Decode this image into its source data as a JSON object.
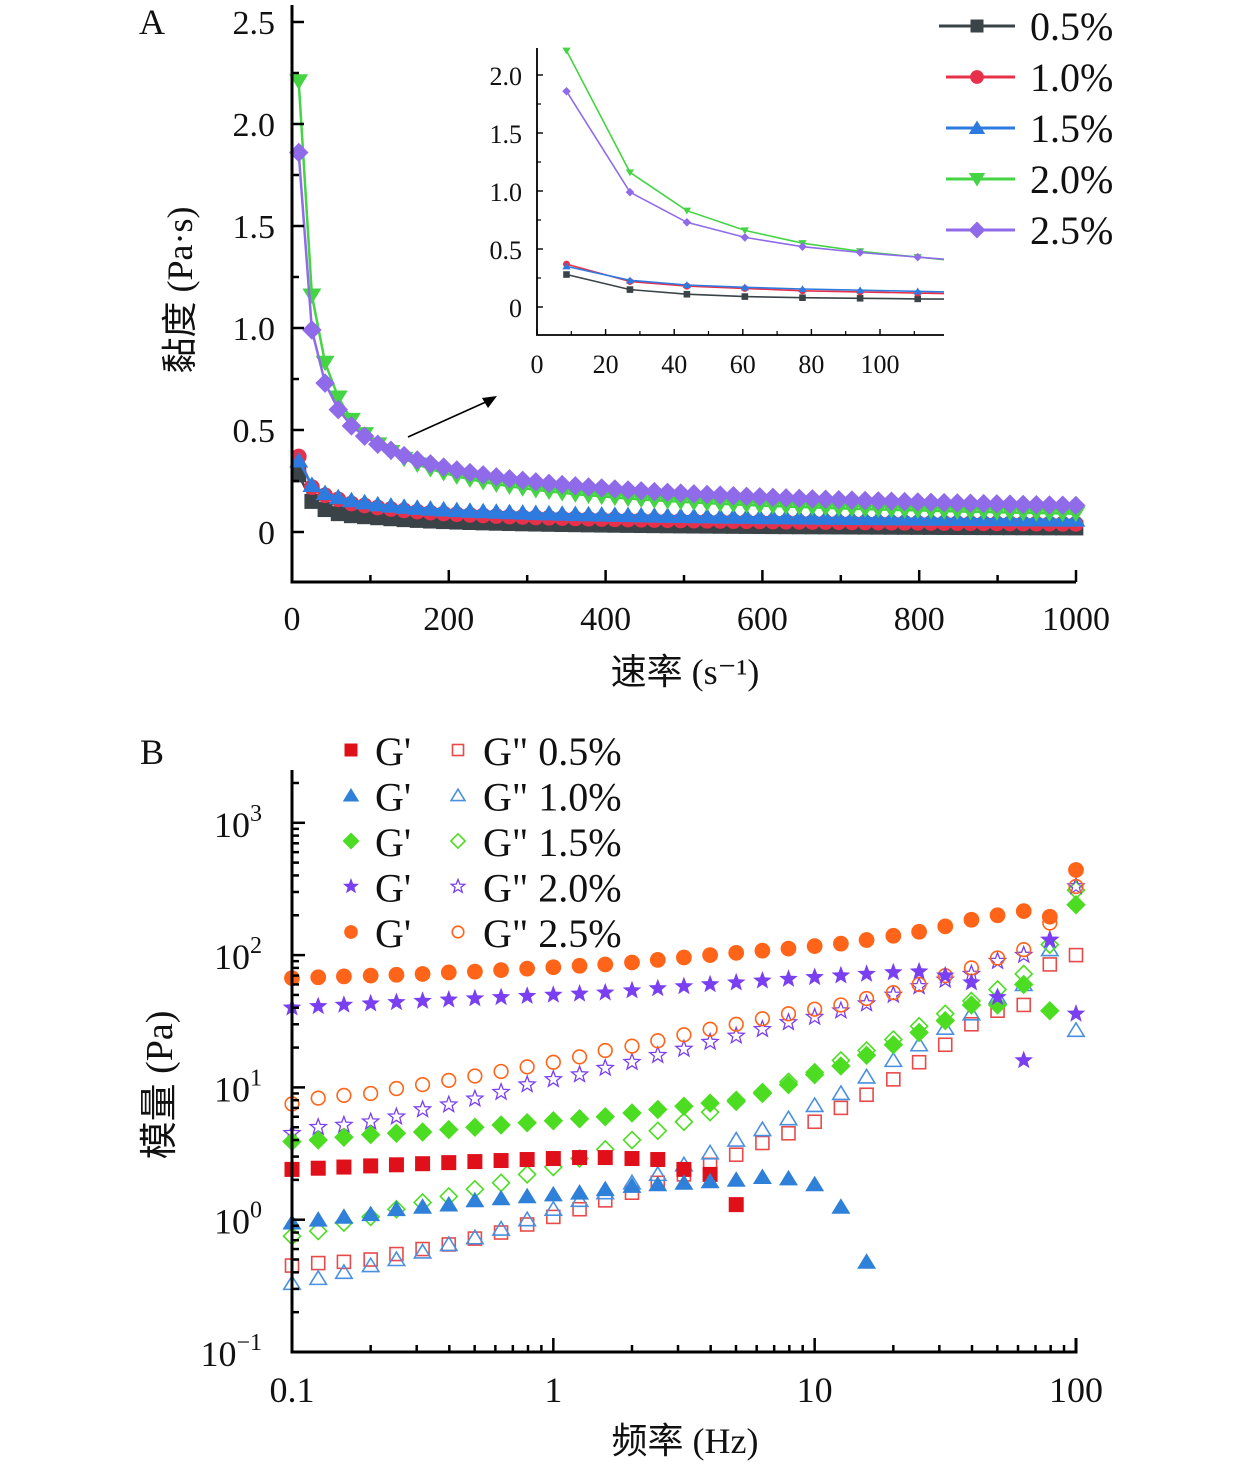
{
  "chart_data": [
    {
      "panel": "A",
      "type": "line",
      "xlabel": "速率 (s⁻¹)",
      "ylabel": "黏度 (Pa·s)",
      "xlim": [
        0,
        1000
      ],
      "ylim": [
        -0.25,
        2.6
      ],
      "xticks": [
        0,
        200,
        400,
        600,
        800,
        1000
      ],
      "xtick_labels": [
        "0",
        "200",
        "400",
        "600",
        "800",
        "1000"
      ],
      "yticks": [
        0,
        0.5,
        1.0,
        1.5,
        2.0,
        2.5
      ],
      "ytick_labels": [
        "0",
        "0.5",
        "1.0",
        "1.5",
        "2.0",
        "2.5"
      ],
      "legend_position": "top-right",
      "series": [
        {
          "name": "0.5%",
          "color": "#3a4448",
          "marker": "square",
          "x": [
            8.6,
            27.1,
            43.7,
            60.6,
            77.4,
            94.2,
            111.0
          ],
          "y": [
            0.28,
            0.15,
            0.11,
            0.09,
            0.08,
            0.075,
            0.07
          ],
          "tail_y_at_1000": 0.02
        },
        {
          "name": "1.0%",
          "color": "#e8304a",
          "marker": "circle",
          "x": [
            8.6,
            27.1,
            43.7,
            60.6,
            77.4,
            94.2,
            111.0
          ],
          "y": [
            0.37,
            0.22,
            0.18,
            0.16,
            0.14,
            0.13,
            0.12
          ],
          "tail_y_at_1000": 0.04
        },
        {
          "name": "1.5%",
          "color": "#2e7be0",
          "marker": "triangle-up",
          "x": [
            8.6,
            27.1,
            43.7,
            60.6,
            77.4,
            94.2,
            111.0
          ],
          "y": [
            0.35,
            0.23,
            0.19,
            0.17,
            0.155,
            0.145,
            0.135
          ],
          "tail_y_at_1000": 0.06
        },
        {
          "name": "2.0%",
          "color": "#44d444",
          "marker": "triangle-down",
          "x": [
            8.6,
            27.1,
            43.7,
            60.6,
            77.4,
            94.2,
            111.0
          ],
          "y": [
            2.21,
            1.16,
            0.83,
            0.66,
            0.55,
            0.48,
            0.43
          ],
          "tail_y_at_1000": 0.09
        },
        {
          "name": "2.5%",
          "color": "#8f6bea",
          "marker": "diamond",
          "x": [
            8.6,
            27.1,
            43.7,
            60.6,
            77.4,
            94.2,
            111.0
          ],
          "y": [
            1.86,
            0.99,
            0.73,
            0.6,
            0.52,
            0.47,
            0.43
          ],
          "tail_y_at_1000": 0.13
        }
      ],
      "inset": {
        "xlim": [
          0,
          118
        ],
        "ylim": [
          -0.24,
          2.22
        ],
        "xticks": [
          0,
          20,
          40,
          60,
          80,
          100
        ],
        "xtick_labels": [
          "0",
          "20",
          "40",
          "60",
          "80",
          "100"
        ],
        "yticks": [
          0,
          0.5,
          1.0,
          1.5,
          2.0
        ],
        "ytick_labels": [
          "0",
          "0.5",
          "1.0",
          "1.5",
          "2.0"
        ]
      },
      "panel_label": "A"
    },
    {
      "panel": "B",
      "type": "scatter",
      "xscale": "log",
      "yscale": "log",
      "xlabel": "频率 (Hz)",
      "ylabel": "模量 (Pa)",
      "xlim": [
        0.1,
        100
      ],
      "ylim": [
        0.1,
        2500
      ],
      "xticks": [
        0.1,
        1,
        10,
        100
      ],
      "xtick_labels": [
        "0.1",
        "1",
        "10",
        "100"
      ],
      "yticks": [
        0.1,
        1,
        10,
        100,
        1000
      ],
      "ytick_labels": [
        [
          "10",
          "−1"
        ],
        [
          "10",
          "0"
        ],
        [
          "10",
          "1"
        ],
        [
          "10",
          "2"
        ],
        [
          "10",
          "3"
        ]
      ],
      "legend_position": "top-left",
      "x": [
        0.1,
        0.126,
        0.158,
        0.2,
        0.251,
        0.316,
        0.398,
        0.501,
        0.631,
        0.794,
        1.0,
        1.26,
        1.58,
        2.0,
        2.51,
        3.16,
        3.98,
        5.01,
        6.31,
        7.94,
        10.0,
        12.6,
        15.8,
        20.0,
        25.1,
        31.6,
        39.8,
        50.1,
        63.1,
        79.4,
        100
      ],
      "series": [
        {
          "name": "G' 0.5%",
          "legend_label": "G'",
          "color": "#e0101a",
          "marker": "square",
          "filled": true,
          "y": [
            2.4,
            2.45,
            2.5,
            2.55,
            2.6,
            2.65,
            2.7,
            2.75,
            2.8,
            2.85,
            2.9,
            2.95,
            2.95,
            2.9,
            2.85,
            2.4,
            2.2,
            1.3,
            null,
            null,
            null,
            null,
            null,
            null,
            null,
            null,
            null,
            null,
            null,
            null,
            null
          ]
        },
        {
          "name": "G'' 0.5%",
          "legend_label": "G\" 0.5%",
          "color": "#e84a4a",
          "marker": "square",
          "filled": false,
          "y": [
            0.45,
            0.47,
            0.48,
            0.5,
            0.55,
            0.6,
            0.65,
            0.72,
            0.8,
            0.92,
            1.05,
            1.2,
            1.4,
            1.6,
            1.9,
            2.2,
            2.6,
            3.1,
            3.8,
            4.5,
            5.5,
            7.0,
            8.8,
            11.5,
            15.5,
            21,
            30,
            38,
            42,
            85,
            100
          ]
        },
        {
          "name": "G' 1.0%",
          "legend_label": "G'",
          "color": "#2e80d8",
          "marker": "triangle-up",
          "filled": true,
          "y": [
            0.95,
            1.0,
            1.05,
            1.1,
            1.2,
            1.25,
            1.3,
            1.4,
            1.45,
            1.5,
            1.55,
            1.6,
            1.7,
            1.8,
            1.85,
            1.9,
            1.95,
            2.0,
            2.1,
            2.05,
            1.85,
            1.25,
            0.48,
            null,
            null,
            null,
            null,
            null,
            null,
            null,
            null
          ]
        },
        {
          "name": "G'' 1.0%",
          "legend_label": "G\" 1.0%",
          "color": "#4a90e0",
          "marker": "triangle-up",
          "filled": false,
          "y": [
            0.33,
            0.36,
            0.4,
            0.45,
            0.5,
            0.57,
            0.65,
            0.73,
            0.85,
            1.0,
            1.2,
            1.4,
            1.6,
            1.9,
            2.2,
            2.6,
            3.2,
            4.0,
            4.8,
            5.8,
            7.3,
            9.0,
            12,
            16,
            21,
            28,
            36,
            48,
            60,
            110,
            27
          ]
        },
        {
          "name": "G' 1.5%",
          "legend_label": "G'",
          "color": "#4cdd22",
          "marker": "diamond",
          "filled": true,
          "y": [
            3.9,
            4.0,
            4.2,
            4.4,
            4.5,
            4.6,
            4.8,
            5.0,
            5.2,
            5.4,
            5.6,
            5.8,
            6.0,
            6.4,
            6.8,
            7.2,
            7.6,
            8.0,
            9.0,
            10.5,
            12.5,
            14.5,
            17.5,
            21,
            26,
            32,
            42,
            42,
            60,
            38,
            240
          ]
        },
        {
          "name": "G'' 1.5%",
          "legend_label": "G\" 1.5%",
          "color": "#4cdd22",
          "marker": "diamond",
          "filled": false,
          "y": [
            0.75,
            0.82,
            0.95,
            1.05,
            1.2,
            1.35,
            1.5,
            1.7,
            1.9,
            2.2,
            2.5,
            2.9,
            3.4,
            4.0,
            4.7,
            5.5,
            6.5,
            7.8,
            9.2,
            11,
            13,
            16,
            19,
            23,
            29,
            36,
            45,
            55,
            72,
            120,
            310
          ]
        },
        {
          "name": "G' 2.0%",
          "legend_label": "G'",
          "color": "#7a3ff0",
          "marker": "star",
          "filled": true,
          "y": [
            40,
            41,
            42,
            43,
            44,
            45,
            46,
            47,
            48,
            49,
            50,
            51,
            52,
            54,
            56,
            58,
            60,
            62,
            64,
            66,
            68,
            70,
            72,
            74,
            75,
            70,
            62,
            48,
            16,
            130,
            36
          ]
        },
        {
          "name": "G'' 2.0%",
          "legend_label": "G\" 2.0%",
          "color": "#7a3ff0",
          "marker": "star",
          "filled": false,
          "y": [
            4.5,
            5.0,
            5.2,
            5.5,
            6.0,
            6.8,
            7.4,
            8.2,
            9.2,
            10.5,
            11.5,
            12.5,
            14,
            15.5,
            17.5,
            19.5,
            22,
            24.5,
            27.5,
            31,
            34,
            38,
            43,
            50,
            58,
            65,
            72,
            90,
            100,
            130,
            330
          ]
        },
        {
          "name": "G' 2.5%",
          "legend_label": "G'",
          "color": "#ff6418",
          "marker": "circle",
          "filled": true,
          "y": [
            67,
            68,
            69,
            70,
            71,
            72,
            74,
            75,
            77,
            79,
            81,
            83,
            85,
            88,
            92,
            96,
            100,
            104,
            108,
            112,
            117,
            122,
            130,
            140,
            150,
            165,
            185,
            200,
            215,
            195,
            440
          ]
        },
        {
          "name": "G'' 2.5%",
          "legend_label": "G\" 2.5%",
          "color": "#ff6418",
          "marker": "circle",
          "filled": false,
          "y": [
            7.5,
            8.3,
            8.7,
            9.0,
            9.8,
            10.5,
            11.3,
            12.2,
            13.2,
            14.3,
            15.5,
            17,
            19,
            20.5,
            22.5,
            25,
            27.5,
            30,
            33,
            36,
            39,
            42,
            47,
            52,
            60,
            70,
            80,
            95,
            110,
            175,
            330
          ]
        }
      ],
      "panel_label": "B"
    }
  ]
}
